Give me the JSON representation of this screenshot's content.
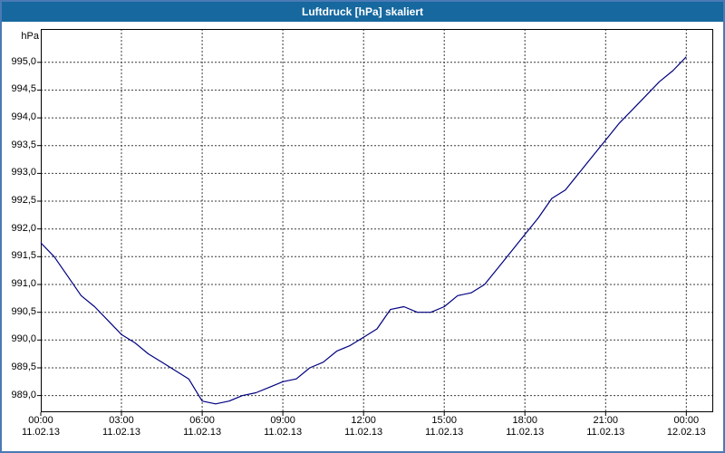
{
  "window": {
    "title": "Luftdruck [hPa] skaliert"
  },
  "colors": {
    "titlebar_bg": "#16689f",
    "titlebar_text": "#ffffff",
    "frame_border": "#4a7ab5",
    "plot_bg": "#ffffff",
    "grid_color": "#3c3c3c",
    "line_color": "#000080"
  },
  "chart_data": {
    "type": "line",
    "title": "Luftdruck [hPa] skaliert",
    "xlabel": "",
    "ylabel": "hPa",
    "xlim_hours": [
      0,
      25
    ],
    "ylim": [
      988.7,
      995.6
    ],
    "grid": "dashed",
    "legend": "none",
    "yticks": [
      989.0,
      989.5,
      990.0,
      990.5,
      991.0,
      991.5,
      992.0,
      992.5,
      993.0,
      993.5,
      994.0,
      994.5,
      995.0
    ],
    "ytick_label_style": "comma-decimal",
    "xticks": [
      {
        "hours": 0,
        "time": "00:00",
        "date": "11.02.13"
      },
      {
        "hours": 3,
        "time": "03:00",
        "date": "11.02.13"
      },
      {
        "hours": 6,
        "time": "06:00",
        "date": "11.02.13"
      },
      {
        "hours": 9,
        "time": "09:00",
        "date": "11.02.13"
      },
      {
        "hours": 12,
        "time": "12:00",
        "date": "11.02.13"
      },
      {
        "hours": 15,
        "time": "15:00",
        "date": "11.02.13"
      },
      {
        "hours": 18,
        "time": "18:00",
        "date": "11.02.13"
      },
      {
        "hours": 21,
        "time": "21:00",
        "date": "11.02.13"
      },
      {
        "hours": 24,
        "time": "00:00",
        "date": "12.02.13"
      }
    ],
    "series": [
      {
        "name": "Luftdruck",
        "color": "#000080",
        "x_hours": [
          0,
          0.5,
          1,
          1.5,
          2,
          2.5,
          3,
          3.5,
          4,
          4.5,
          5,
          5.5,
          6,
          6.5,
          7,
          7.5,
          8,
          8.5,
          9,
          9.5,
          10,
          10.5,
          11,
          11.5,
          12,
          12.5,
          13,
          13.5,
          14,
          14.5,
          15,
          15.5,
          16,
          16.5,
          17,
          17.5,
          18,
          18.5,
          19,
          19.5,
          20,
          20.5,
          21,
          21.5,
          22,
          22.5,
          23,
          23.5,
          24
        ],
        "values": [
          991.75,
          991.5,
          991.15,
          990.8,
          990.6,
          990.35,
          990.1,
          989.95,
          989.75,
          989.6,
          989.45,
          989.3,
          988.9,
          988.85,
          988.9,
          989.0,
          989.05,
          989.15,
          989.25,
          989.3,
          989.5,
          989.6,
          989.8,
          989.9,
          990.05,
          990.2,
          990.55,
          990.6,
          990.5,
          990.5,
          990.6,
          990.8,
          990.85,
          991.0,
          991.3,
          991.6,
          991.9,
          992.2,
          992.55,
          992.7,
          993.0,
          993.3,
          993.6,
          993.9,
          994.15,
          994.4,
          994.65,
          994.85,
          995.1
        ]
      }
    ]
  }
}
